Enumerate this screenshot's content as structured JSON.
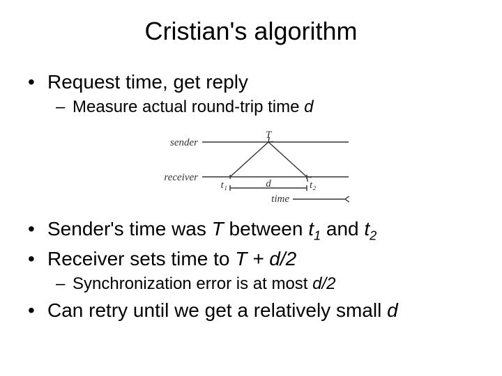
{
  "title": "Cristian's algorithm",
  "b1": "Request time, get reply",
  "b1_1_pre": "Measure actual round-trip time ",
  "b1_1_d": "d",
  "b2_pre": "Sender's time was ",
  "b2_T": "T",
  "b2_between": " between ",
  "b2_t": "t",
  "b2_sub1": "1",
  "b2_and": " and ",
  "b2_sub2": "2",
  "b3_pre": "Receiver sets time to ",
  "b3_expr": "T + d/2",
  "b3_1_pre": "Synchronization error is at most ",
  "b3_1_expr": "d/2",
  "b4_pre": "Can retry until we get a relatively small ",
  "b4_d": "d",
  "diagram": {
    "sender_label": "sender",
    "receiver_label": "receiver",
    "T_label": "T",
    "t1_label": "t₁",
    "t2_label": "t₂",
    "d_label": "d",
    "time_label": "time",
    "stroke": "#333333",
    "stroke_width": 1.4,
    "font": "italic 15px 'Comic Sans MS', cursive"
  }
}
